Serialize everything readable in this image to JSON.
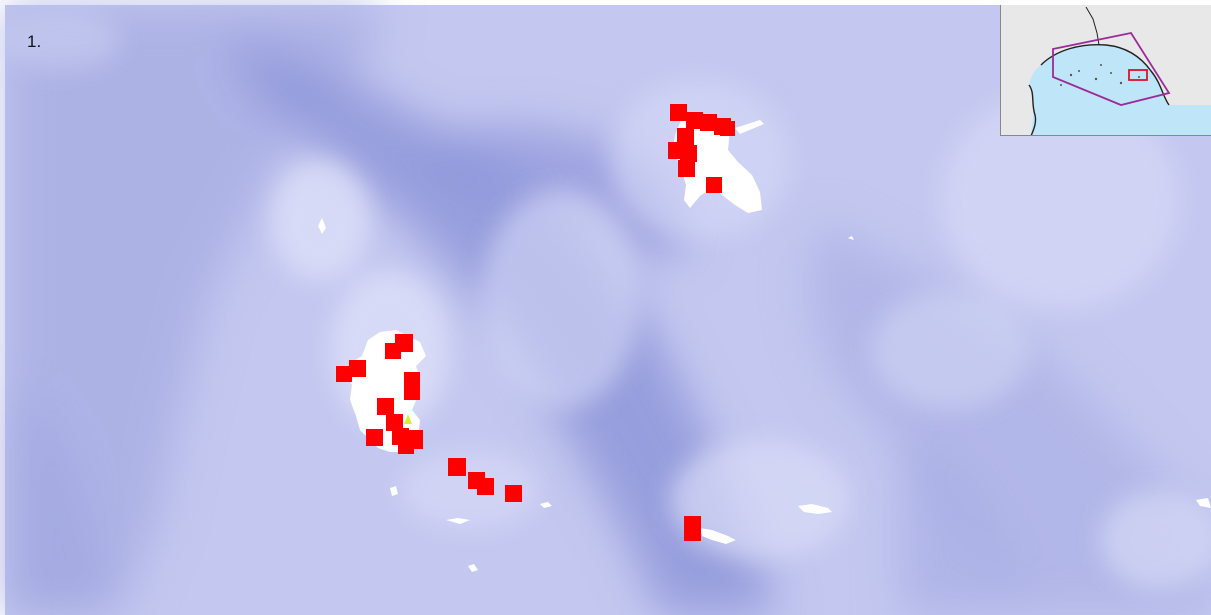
{
  "panel_label": "1.",
  "colors": {
    "water_light": "#d3d6f6",
    "water_mid": "#aab0e6",
    "water_deep": "#8a91d6",
    "land": "#ffffff",
    "marker": "#ff0000",
    "highlight": "#d8ef2a",
    "inset_land": "#e8e8e8",
    "inset_sea": "#bfe6f8",
    "inset_region": "#9b2b9b",
    "inset_box": "#e0102a"
  },
  "icons": {
    "marker": "red-square-marker",
    "highlight": "yellow-point-marker"
  }
}
